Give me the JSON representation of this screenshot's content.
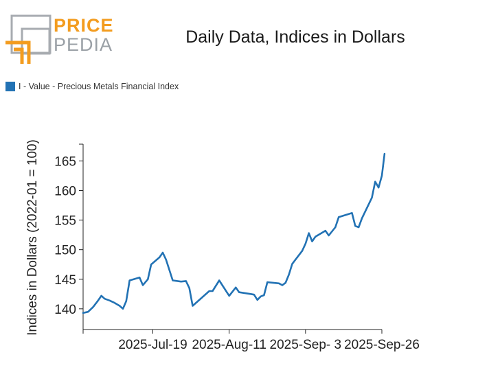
{
  "logo": {
    "line1": "PRICE",
    "line2": "PEDIA",
    "accent_color": "#f39c1f",
    "gray_color": "#9aa0a6"
  },
  "chart_data": {
    "type": "line",
    "title": "Daily Data, Indices in Dollars",
    "ylabel": "Indices in Dollars (2022-01 = 100)",
    "xlabel": "",
    "ylim": [
      136.5,
      169
    ],
    "yticks": [
      140,
      145,
      150,
      155,
      160,
      165
    ],
    "xticks": [
      {
        "day": 18,
        "label": "2025-Jul-19"
      },
      {
        "day": 41,
        "label": "2025-Aug-11"
      },
      {
        "day": 64,
        "label": "2025-Sep- 3"
      },
      {
        "day": 87,
        "label": "2025-Sep-26"
      }
    ],
    "xlim": [
      -3,
      87
    ],
    "series": [
      {
        "name": "I - Value - Precious Metals Financial Index",
        "color": "#2272b4",
        "points": [
          [
            -3,
            139.3
          ],
          [
            -1.5,
            139.5
          ],
          [
            0,
            140.3
          ],
          [
            1.5,
            141.4
          ],
          [
            2.5,
            142.2
          ],
          [
            3.5,
            141.7
          ],
          [
            5,
            141.4
          ],
          [
            6.5,
            141.0
          ],
          [
            8,
            140.5
          ],
          [
            9,
            140.0
          ],
          [
            10,
            141.3
          ],
          [
            11,
            144.8
          ],
          [
            14,
            145.3
          ],
          [
            15,
            144.0
          ],
          [
            16.5,
            145.0
          ],
          [
            17.5,
            147.5
          ],
          [
            20,
            148.7
          ],
          [
            21,
            149.5
          ],
          [
            22,
            148.3
          ],
          [
            24,
            144.8
          ],
          [
            26.5,
            144.6
          ],
          [
            28,
            144.7
          ],
          [
            29,
            143.5
          ],
          [
            30,
            140.5
          ],
          [
            35,
            143.0
          ],
          [
            36,
            143.0
          ],
          [
            38,
            144.8
          ],
          [
            41,
            142.2
          ],
          [
            43,
            143.6
          ],
          [
            44,
            142.8
          ],
          [
            47.5,
            142.5
          ],
          [
            48.5,
            142.4
          ],
          [
            49.5,
            141.5
          ],
          [
            50.5,
            142.1
          ],
          [
            51.5,
            142.3
          ],
          [
            52.5,
            144.5
          ],
          [
            56,
            144.3
          ],
          [
            57,
            144.0
          ],
          [
            58,
            144.4
          ],
          [
            59,
            145.8
          ],
          [
            60,
            147.6
          ],
          [
            63,
            149.8
          ],
          [
            64,
            151.0
          ],
          [
            65,
            152.8
          ],
          [
            66,
            151.4
          ],
          [
            67,
            152.2
          ],
          [
            70,
            153.2
          ],
          [
            71,
            152.4
          ],
          [
            73,
            153.8
          ],
          [
            74,
            155.5
          ],
          [
            78,
            156.2
          ],
          [
            79,
            154.0
          ],
          [
            80,
            153.8
          ],
          [
            81,
            155.3
          ],
          [
            84,
            158.8
          ],
          [
            85,
            161.5
          ],
          [
            86,
            160.5
          ],
          [
            87,
            162.5
          ],
          [
            87.8,
            166.2
          ]
        ]
      }
    ]
  }
}
